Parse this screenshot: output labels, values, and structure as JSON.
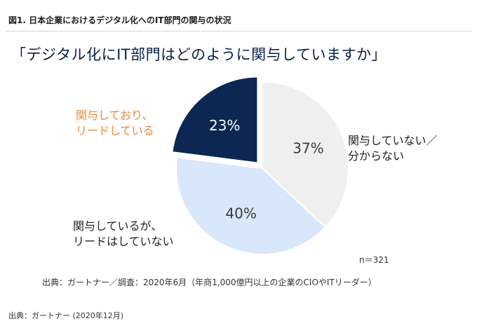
{
  "figure_title": "図1. 日本企業におけるデジタル化へのIT部門の関与の状況",
  "question": "「デジタル化にIT部門はどのように関与していますか」",
  "sample_size": "n＝321",
  "source_line": "出典：ガートナー／調査：2020年6月（年商1,000億円以上の企業のCIOやITリーダー）",
  "footer_source": "出典：ガートナー (2020年12月)",
  "colors": {
    "dark_navy": "#0c2852",
    "light_blue": "#d9e7fb",
    "light_gray": "#efefef",
    "orange": "#e58a3f"
  },
  "chart_data": {
    "type": "pie",
    "unit": "%",
    "slices": [
      {
        "label": "関与していない／\n分からない",
        "value": 37,
        "display": "37%",
        "color": "#efefef"
      },
      {
        "label": "関与しているが、\nリードはしていない",
        "value": 40,
        "display": "40%",
        "color": "#d9e7fb"
      },
      {
        "label": "関与しており、\nリードしている",
        "value": 23,
        "display": "23%",
        "color": "#0c2852"
      }
    ]
  }
}
